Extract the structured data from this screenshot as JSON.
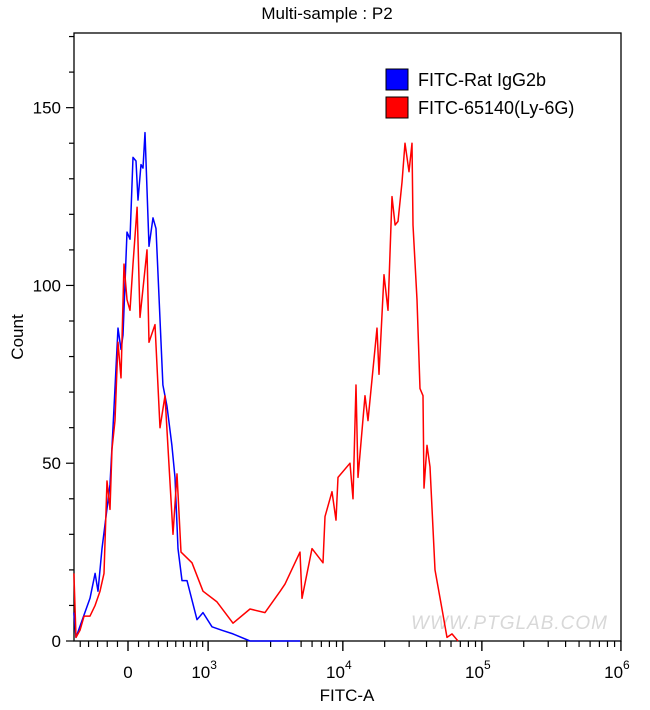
{
  "chart_data": {
    "type": "line",
    "title": "Multi-sample : P2",
    "xlabel": "FITC-A",
    "ylabel": "Count",
    "x_scale": "biexponential",
    "xlim": [
      -580,
      1000000
    ],
    "ylim": [
      0,
      171
    ],
    "grid": false,
    "legend_position": "top-right",
    "x_ticks": [
      {
        "value": 0,
        "base": "0",
        "exp": ""
      },
      {
        "value": 1000,
        "base": "10",
        "exp": "3"
      },
      {
        "value": 10000,
        "base": "10",
        "exp": "4"
      },
      {
        "value": 100000,
        "base": "10",
        "exp": "5"
      },
      {
        "value": 1000000,
        "base": "10",
        "exp": "6"
      }
    ],
    "y_ticks": [
      0,
      50,
      100,
      150
    ],
    "watermark": "WWW.PTGLAB.COM",
    "series": [
      {
        "name": "FITC-Rat IgG2b",
        "color": "#0000ff",
        "x": [
          -582,
          -555,
          -383,
          -327,
          -295,
          -253,
          -173,
          -143,
          -95,
          -66,
          -47,
          -9,
          19,
          47,
          76,
          95,
          124,
          143,
          163,
          203,
          243,
          274,
          349,
          395,
          453,
          490,
          529,
          581,
          651,
          803,
          906,
          1076,
          1293,
          1573,
          2114,
          3820,
          4910
        ],
        "y": [
          8,
          1,
          12,
          19,
          14,
          26,
          44,
          60,
          88,
          82,
          86,
          115,
          113,
          136,
          135,
          124,
          134,
          133,
          143,
          111,
          119,
          116,
          72,
          66,
          55,
          46,
          26,
          17,
          17,
          6,
          8,
          4,
          3,
          2,
          0,
          0,
          0
        ]
      },
      {
        "name": "FITC-65140(Ly-6G)",
        "color": "#ff0000",
        "x": [
          -582,
          -555,
          -503,
          -453,
          -383,
          -327,
          -274,
          -233,
          -203,
          -173,
          -153,
          -124,
          -95,
          -66,
          -38,
          -9,
          19,
          47,
          86,
          114,
          183,
          203,
          264,
          317,
          372,
          466,
          516,
          568,
          725,
          906,
          1181,
          1573,
          2114,
          2729,
          3524,
          3820,
          4910,
          5076,
          5990,
          7195,
          7440,
          8354,
          8925,
          9233,
          11260,
          11837,
          12442,
          12853,
          14441,
          15183,
          17627,
          18209,
          19780,
          21150,
          22583,
          23754,
          24953,
          26637,
          28008,
          29920,
          31462,
          31976,
          34174,
          35887,
          37743,
          38371,
          40313,
          42368,
          46023,
          51676,
          56129,
          60983,
          67378
        ],
        "y": [
          19,
          1,
          3,
          7,
          7,
          10,
          14,
          19,
          45,
          37,
          54,
          62,
          84,
          74,
          106,
          96,
          93,
          106,
          122,
          91,
          110,
          84,
          89,
          60,
          69,
          30,
          47,
          25,
          22,
          14,
          11,
          5,
          9,
          8,
          14,
          16,
          25,
          12,
          26,
          22,
          35,
          42,
          34,
          46,
          50,
          40,
          72,
          46,
          69,
          62,
          88,
          75,
          103,
          93,
          125,
          117,
          118,
          129,
          140,
          132,
          140,
          117,
          96,
          71,
          69,
          43,
          55,
          49,
          20,
          9,
          1,
          2,
          0
        ]
      }
    ]
  }
}
